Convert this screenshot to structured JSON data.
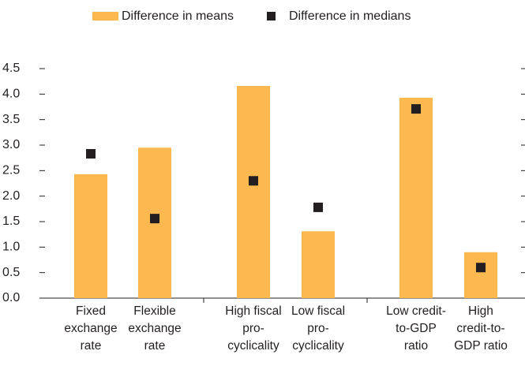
{
  "chart_data": {
    "type": "bar",
    "categories": [
      "Fixed exchange rate",
      "Flexible exchange rate",
      "High fiscal pro-cyclicality",
      "Low fiscal pro-cyclicality",
      "Low credit-to-GDP ratio",
      "High credit-to-GDP ratio"
    ],
    "series": [
      {
        "name": "Difference in means",
        "color": "#fdb94f",
        "values": [
          2.43,
          2.95,
          4.16,
          1.31,
          3.93,
          0.9
        ]
      },
      {
        "name": "Difference in medians",
        "color": "#231f20",
        "values": [
          2.83,
          1.56,
          2.3,
          1.78,
          3.71,
          0.6
        ]
      }
    ],
    "ylim": [
      0,
      4.5
    ],
    "yticks": [
      {
        "value": 0,
        "label": "0.0"
      },
      0.5,
      {
        "value": 1,
        "label": "1.0"
      },
      1.5,
      {
        "value": 2,
        "label": "2.0"
      },
      2.5,
      {
        "value": 3,
        "label": "3.0"
      },
      3.5,
      {
        "value": 4,
        "label": "4.0"
      },
      4.5
    ],
    "grid": false
  }
}
